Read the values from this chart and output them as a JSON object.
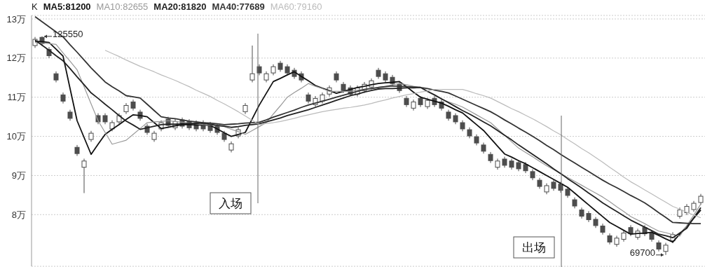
{
  "chart_data": {
    "type": "candlestick",
    "legend_title": "K",
    "color": "#4d4d4d",
    "categories": [
      null,
      null,
      null,
      null,
      null,
      null,
      null,
      null,
      null,
      null,
      null,
      null,
      null,
      null,
      null,
      null,
      null,
      null,
      null,
      null,
      null,
      null,
      null,
      null,
      null,
      null,
      null,
      null,
      null,
      null,
      null,
      null,
      null,
      null,
      null,
      null,
      null,
      null,
      null,
      null,
      null,
      null,
      null,
      null,
      null,
      null,
      null,
      null,
      null,
      null,
      null,
      null,
      null,
      null,
      null,
      null,
      null,
      null,
      null,
      null,
      null,
      null,
      null,
      null,
      null,
      null,
      null,
      null,
      null,
      null,
      null,
      null,
      null,
      null,
      null,
      null,
      null,
      null,
      null,
      null,
      null,
      null,
      null,
      null,
      null,
      null,
      null,
      null,
      null,
      null,
      null,
      null,
      null,
      null,
      null,
      null
    ],
    "ohlc": [
      [
        12.32,
        12.54,
        12.26,
        12.48
      ],
      [
        12.53,
        12.555,
        12.31,
        12.37
      ],
      [
        12.22,
        12.28,
        12.0,
        12.06
      ],
      [
        11.6,
        11.66,
        11.38,
        11.44
      ],
      [
        11.06,
        11.12,
        10.84,
        10.9
      ],
      [
        10.62,
        10.68,
        10.4,
        10.46
      ],
      [
        9.72,
        9.78,
        9.5,
        9.56
      ],
      [
        9.21,
        9.43,
        8.55,
        9.37
      ],
      [
        9.92,
        10.14,
        9.86,
        10.08
      ],
      [
        10.53,
        10.59,
        10.31,
        10.37
      ],
      [
        10.53,
        10.59,
        10.31,
        10.37
      ],
      [
        10.19,
        10.41,
        10.13,
        10.35
      ],
      [
        10.37,
        10.59,
        10.31,
        10.53
      ],
      [
        10.63,
        10.85,
        10.57,
        10.79
      ],
      [
        10.88,
        10.94,
        10.66,
        10.72
      ],
      [
        10.62,
        10.68,
        10.4,
        10.46
      ],
      [
        10.26,
        10.32,
        10.04,
        10.1
      ],
      [
        9.92,
        10.14,
        9.86,
        10.08
      ],
      [
        10.19,
        10.41,
        10.13,
        10.35
      ],
      [
        10.44,
        10.5,
        10.22,
        10.28
      ],
      [
        10.22,
        10.44,
        10.16,
        10.38
      ],
      [
        10.42,
        10.48,
        10.2,
        10.26
      ],
      [
        10.38,
        10.44,
        10.16,
        10.22
      ],
      [
        10.35,
        10.41,
        10.13,
        10.19
      ],
      [
        10.35,
        10.41,
        10.13,
        10.19
      ],
      [
        10.31,
        10.37,
        10.09,
        10.15
      ],
      [
        10.26,
        10.32,
        10.04,
        10.1
      ],
      [
        10.08,
        10.14,
        9.86,
        9.92
      ],
      [
        9.65,
        9.87,
        9.59,
        9.81
      ],
      [
        10.01,
        10.23,
        9.95,
        10.17
      ],
      [
        10.63,
        10.85,
        10.57,
        10.79
      ],
      [
        11.44,
        12.32,
        11.38,
        11.6
      ],
      [
        11.78,
        11.84,
        11.56,
        11.62
      ],
      [
        11.44,
        11.66,
        11.38,
        11.6
      ],
      [
        11.62,
        11.84,
        11.56,
        11.78
      ],
      [
        11.87,
        11.93,
        11.65,
        11.71
      ],
      [
        11.78,
        11.84,
        11.56,
        11.62
      ],
      [
        11.69,
        11.75,
        11.47,
        11.53
      ],
      [
        11.6,
        11.66,
        11.38,
        11.44
      ],
      [
        11.06,
        11.12,
        10.84,
        10.9
      ],
      [
        10.81,
        11.03,
        10.75,
        10.97
      ],
      [
        10.9,
        11.12,
        10.84,
        11.06
      ],
      [
        11.08,
        11.3,
        11.02,
        11.24
      ],
      [
        11.6,
        11.66,
        11.38,
        11.44
      ],
      [
        11.33,
        11.39,
        11.11,
        11.17
      ],
      [
        11.24,
        11.3,
        11.02,
        11.08
      ],
      [
        11.08,
        11.3,
        11.02,
        11.24
      ],
      [
        11.17,
        11.39,
        11.11,
        11.33
      ],
      [
        11.26,
        11.48,
        11.2,
        11.42
      ],
      [
        11.69,
        11.75,
        11.47,
        11.53
      ],
      [
        11.6,
        11.66,
        11.38,
        11.44
      ],
      [
        11.51,
        11.57,
        11.29,
        11.35
      ],
      [
        11.33,
        11.39,
        11.11,
        11.17
      ],
      [
        10.97,
        11.03,
        10.75,
        10.81
      ],
      [
        10.72,
        10.94,
        10.66,
        10.88
      ],
      [
        10.97,
        11.03,
        10.75,
        10.81
      ],
      [
        10.76,
        10.98,
        10.7,
        10.92
      ],
      [
        10.97,
        11.03,
        10.75,
        10.81
      ],
      [
        10.88,
        10.94,
        10.66,
        10.72
      ],
      [
        10.62,
        10.68,
        10.4,
        10.46
      ],
      [
        10.53,
        10.59,
        10.31,
        10.37
      ],
      [
        10.35,
        10.41,
        10.13,
        10.19
      ],
      [
        10.17,
        10.23,
        9.95,
        10.01
      ],
      [
        9.99,
        10.05,
        9.77,
        9.83
      ],
      [
        9.78,
        9.84,
        9.56,
        9.62
      ],
      [
        9.54,
        9.6,
        9.32,
        9.38
      ],
      [
        9.21,
        9.43,
        9.15,
        9.37
      ],
      [
        9.42,
        9.48,
        9.2,
        9.26
      ],
      [
        9.37,
        9.43,
        9.15,
        9.21
      ],
      [
        9.33,
        9.39,
        9.11,
        9.17
      ],
      [
        9.28,
        9.34,
        9.06,
        9.12
      ],
      [
        9.1,
        9.16,
        8.88,
        8.94
      ],
      [
        8.88,
        8.94,
        8.66,
        8.72
      ],
      [
        8.58,
        8.8,
        8.52,
        8.74
      ],
      [
        8.83,
        8.89,
        8.61,
        8.67
      ],
      [
        8.78,
        8.84,
        8.56,
        8.62
      ],
      [
        8.65,
        8.71,
        8.43,
        8.49
      ],
      [
        8.38,
        8.44,
        8.16,
        8.22
      ],
      [
        8.12,
        8.18,
        7.9,
        7.96
      ],
      [
        8.03,
        8.09,
        7.81,
        7.87
      ],
      [
        7.88,
        7.94,
        7.66,
        7.72
      ],
      [
        7.71,
        7.77,
        7.49,
        7.55
      ],
      [
        7.46,
        7.52,
        7.24,
        7.3
      ],
      [
        7.24,
        7.46,
        7.18,
        7.4
      ],
      [
        7.37,
        7.59,
        7.31,
        7.53
      ],
      [
        7.67,
        7.73,
        7.45,
        7.51
      ],
      [
        7.42,
        7.64,
        7.36,
        7.58
      ],
      [
        7.67,
        7.73,
        7.45,
        7.51
      ],
      [
        7.53,
        7.59,
        7.31,
        7.37
      ],
      [
        7.28,
        7.34,
        7.06,
        7.12
      ],
      [
        7.06,
        7.28,
        6.97,
        7.22
      ],
      [
        7.33,
        7.55,
        7.27,
        7.49
      ],
      [
        7.96,
        8.18,
        7.9,
        8.12
      ],
      [
        8.05,
        8.27,
        7.99,
        8.21
      ],
      [
        8.13,
        8.35,
        8.07,
        8.29
      ],
      [
        8.31,
        8.53,
        8.25,
        8.47
      ]
    ],
    "series": [
      {
        "name": "MA5:81200",
        "type": "line",
        "color": "#111111",
        "values": [
          12.43,
          12.42,
          12.4,
          12.23,
          12.05,
          11.22,
          10.4,
          9.97,
          9.54,
          9.8,
          10.05,
          10.18,
          10.3,
          10.43,
          10.55,
          10.53,
          10.5,
          10.35,
          10.2,
          10.23,
          10.27,
          10.3,
          10.3,
          10.29,
          10.29,
          10.28,
          10.19,
          10.09,
          10.0,
          10.05,
          10.1,
          10.45,
          10.8,
          11.1,
          11.4,
          11.48,
          11.57,
          11.65,
          11.53,
          11.42,
          11.3,
          11.23,
          11.17,
          11.1,
          11.15,
          11.2,
          11.25,
          11.28,
          11.32,
          11.35,
          11.37,
          11.38,
          11.4,
          11.27,
          11.13,
          11.0,
          10.95,
          10.9,
          10.85,
          10.77,
          10.68,
          10.6,
          10.45,
          10.3,
          10.15,
          9.95,
          9.75,
          9.55,
          9.47,
          9.38,
          9.3,
          9.2,
          9.1,
          9.0,
          8.9,
          8.8,
          8.7,
          8.55,
          8.4,
          8.25,
          8.1,
          7.95,
          7.8,
          7.7,
          7.6,
          7.5,
          7.52,
          7.53,
          7.55,
          7.47,
          7.38,
          7.3,
          7.5,
          7.7,
          7.91,
          8.12
        ]
      },
      {
        "name": "MA10:82655",
        "type": "line",
        "color": "#999999",
        "values": [
          12.4,
          12.38,
          12.37,
          12.35,
          12.13,
          11.92,
          11.7,
          11.27,
          10.83,
          10.4,
          10.1,
          9.8,
          9.85,
          9.9,
          10.05,
          10.2,
          10.35,
          10.37,
          10.38,
          10.4,
          10.38,
          10.36,
          10.34,
          10.32,
          10.3,
          10.29,
          10.27,
          10.25,
          10.18,
          10.12,
          10.05,
          10.15,
          10.25,
          10.35,
          10.57,
          10.78,
          11.0,
          11.12,
          11.23,
          11.35,
          11.28,
          11.22,
          11.15,
          11.15,
          11.15,
          11.15,
          11.18,
          11.2,
          11.23,
          11.25,
          11.28,
          11.32,
          11.35,
          11.32,
          11.28,
          11.25,
          11.15,
          11.05,
          10.95,
          10.88,
          10.82,
          10.75,
          10.65,
          10.55,
          10.45,
          10.35,
          10.19,
          10.03,
          9.86,
          9.7,
          9.59,
          9.48,
          9.36,
          9.25,
          9.15,
          9.05,
          8.95,
          8.85,
          8.75,
          8.65,
          8.55,
          8.45,
          8.33,
          8.2,
          8.08,
          7.95,
          7.86,
          7.77,
          7.67,
          7.58,
          7.54,
          7.49,
          7.45,
          7.72,
          7.99,
          8.27
        ]
      },
      {
        "name": "MA20:81820",
        "type": "line",
        "color": "#222222",
        "values": [
          12.46,
          12.33,
          12.2,
          12.06,
          11.93,
          11.73,
          11.52,
          11.32,
          11.11,
          10.97,
          10.82,
          10.68,
          10.53,
          10.39,
          10.29,
          10.18,
          10.22,
          10.26,
          10.3,
          10.31,
          10.31,
          10.32,
          10.33,
          10.33,
          10.34,
          10.31,
          10.28,
          10.26,
          10.23,
          10.25,
          10.28,
          10.3,
          10.32,
          10.37,
          10.42,
          10.47,
          10.53,
          10.58,
          10.63,
          10.68,
          10.74,
          10.8,
          10.86,
          10.92,
          10.98,
          11.04,
          11.08,
          11.13,
          11.17,
          11.21,
          11.22,
          11.22,
          11.23,
          11.24,
          11.24,
          11.25,
          11.15,
          11.06,
          10.96,
          10.86,
          10.76,
          10.66,
          10.57,
          10.47,
          10.37,
          10.27,
          10.15,
          10.03,
          9.91,
          9.78,
          9.66,
          9.54,
          9.42,
          9.3,
          9.17,
          9.05,
          8.92,
          8.8,
          8.68,
          8.55,
          8.43,
          8.3,
          8.19,
          8.08,
          7.97,
          7.86,
          7.77,
          7.68,
          7.59,
          7.5,
          7.46,
          7.41,
          7.53,
          7.65,
          7.92,
          8.18
        ]
      },
      {
        "name": "MA40:77689",
        "type": "line",
        "color": "#333333",
        "values": [
          13.06,
          12.93,
          12.8,
          12.67,
          12.54,
          12.34,
          12.15,
          11.95,
          11.75,
          11.57,
          11.39,
          11.27,
          11.16,
          11.04,
          11.01,
          10.98,
          10.82,
          10.66,
          10.5,
          10.47,
          10.45,
          10.42,
          10.39,
          10.37,
          10.35,
          10.34,
          10.32,
          10.3,
          10.31,
          10.32,
          10.34,
          10.35,
          10.36,
          10.42,
          10.49,
          10.55,
          10.61,
          10.67,
          10.74,
          10.8,
          10.85,
          10.9,
          10.95,
          11.0,
          11.05,
          11.1,
          11.15,
          11.2,
          11.22,
          11.25,
          11.27,
          11.29,
          11.28,
          11.27,
          11.26,
          11.25,
          11.22,
          11.18,
          11.15,
          11.11,
          11.03,
          10.95,
          10.87,
          10.79,
          10.71,
          10.63,
          10.53,
          10.42,
          10.32,
          10.21,
          10.11,
          10.0,
          9.89,
          9.77,
          9.66,
          9.54,
          9.43,
          9.32,
          9.21,
          9.1,
          8.99,
          8.88,
          8.78,
          8.69,
          8.59,
          8.49,
          8.4,
          8.3,
          8.18,
          8.05,
          7.93,
          7.8,
          7.79,
          7.78,
          7.77,
          7.77
        ]
      },
      {
        "name": "MA60:79160",
        "type": "line",
        "color": "#bbbbbb",
        "values": [
          null,
          null,
          null,
          null,
          null,
          null,
          null,
          null,
          null,
          null,
          12.2,
          12.12,
          12.04,
          11.95,
          11.87,
          11.79,
          11.72,
          11.65,
          11.57,
          11.5,
          11.43,
          11.35,
          11.27,
          11.18,
          11.1,
          11.02,
          10.92,
          10.83,
          10.73,
          10.63,
          10.52,
          10.41,
          10.3,
          10.33,
          10.35,
          10.38,
          10.42,
          10.46,
          10.51,
          10.55,
          10.59,
          10.63,
          10.66,
          10.69,
          10.72,
          10.74,
          10.77,
          10.8,
          10.84,
          10.89,
          10.93,
          10.98,
          11.02,
          11.06,
          11.09,
          11.13,
          11.16,
          11.2,
          11.2,
          11.2,
          11.2,
          11.2,
          11.15,
          11.09,
          11.04,
          10.98,
          10.89,
          10.8,
          10.71,
          10.63,
          10.54,
          10.45,
          10.35,
          10.25,
          10.14,
          10.04,
          9.92,
          9.81,
          9.69,
          9.58,
          9.46,
          9.34,
          9.21,
          9.09,
          8.96,
          8.84,
          8.74,
          8.63,
          8.53,
          8.42,
          8.32,
          8.21,
          8.14,
          8.06,
          7.99,
          7.92
        ]
      }
    ],
    "ylim": [
      6.68,
      13.09
    ],
    "yticks": [
      {
        "value": 8,
        "label": "8万"
      },
      {
        "value": 9,
        "label": "9万"
      },
      {
        "value": 10,
        "label": "10万"
      },
      {
        "value": 11,
        "label": "11万"
      },
      {
        "value": 12,
        "label": "12万"
      },
      {
        "value": 13,
        "label": "13万"
      }
    ],
    "tick_labels": "y",
    "grid": "y",
    "annotations": [
      "125550",
      "69700",
      "入场",
      "出场"
    ]
  }
}
